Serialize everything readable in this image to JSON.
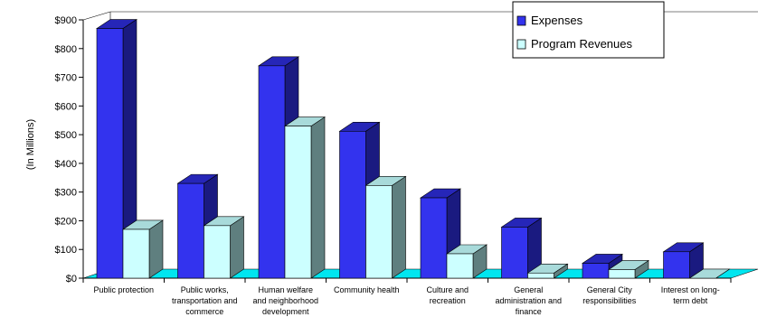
{
  "chart_data": {
    "type": "bar",
    "title": "",
    "xlabel": "",
    "ylabel": "(In Millions)",
    "ylim": [
      0,
      900
    ],
    "yticks": [
      "$0",
      "$100",
      "$200",
      "$300",
      "$400",
      "$500",
      "$600",
      "$700",
      "$800",
      "$900"
    ],
    "categories": [
      [
        "Public protection"
      ],
      [
        "Public works,",
        "transportation and",
        "commerce"
      ],
      [
        "Human welfare",
        "and neighborhood",
        "development"
      ],
      [
        "Community health"
      ],
      [
        "Culture and",
        "recreation"
      ],
      [
        "General",
        "administration and",
        "finance"
      ],
      [
        "General City",
        "responsibilities"
      ],
      [
        "Interest on long-",
        "term debt"
      ]
    ],
    "series": [
      {
        "name": "Expenses",
        "values": [
          870,
          330,
          740,
          512,
          280,
          178,
          52,
          92
        ]
      },
      {
        "name": "Program Revenues",
        "values": [
          170,
          183,
          530,
          323,
          85,
          18,
          30,
          0
        ]
      }
    ],
    "legend": "top-right",
    "grid": false
  },
  "colors": {
    "expenses_front": "#3333ee",
    "expenses_side": "#1a1a80",
    "expenses_top": "#2626b8",
    "revenues_front": "#ccffff",
    "revenues_side": "#5f7f7f",
    "revenues_top": "#a8dada",
    "floor": "#00e6f0"
  }
}
